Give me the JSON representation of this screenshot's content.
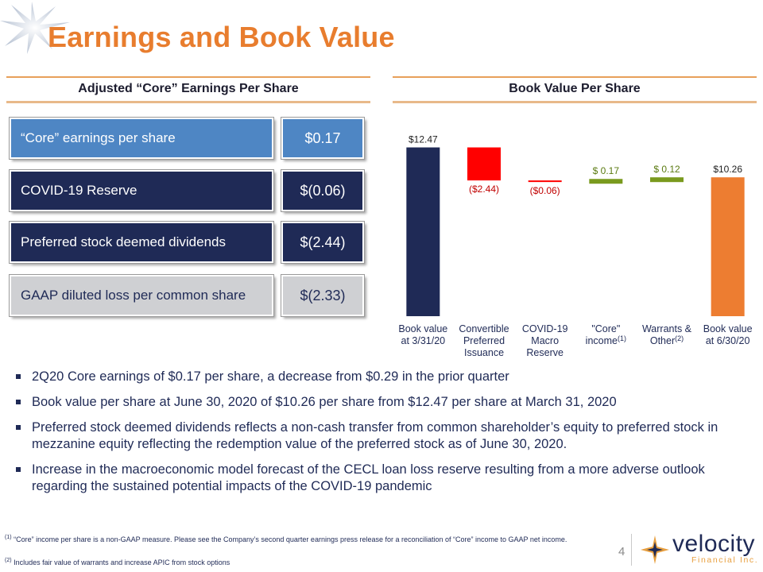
{
  "title": "Earnings and Book Value",
  "left_header": "Adjusted “Core” Earnings Per Share",
  "right_header": "Book Value Per Share",
  "eps_rows": [
    {
      "label": "“Core” earnings per share",
      "value": "$0.17"
    },
    {
      "label": "COVID-19 Reserve",
      "value": "$(0.06)"
    },
    {
      "label": "Preferred stock deemed dividends",
      "value": "$(2.44)"
    },
    {
      "label": "GAAP diluted loss per common share",
      "value": "$(2.33)"
    }
  ],
  "colors": {
    "title": "#e87d2e",
    "navy": "#1f2a56",
    "blue": "#4e86c4",
    "gray": "#cfd0d3",
    "red": "#ff0000",
    "green": "#7a9a1e",
    "orange": "#ed7d31",
    "red_label": "#c00000",
    "green_label": "#5a7a10"
  },
  "chart_data": {
    "type": "bar",
    "categories": [
      "Book value\nat 3/31/20",
      "Convertible\nPreferred\nIssuance",
      "COVID-19\nMacro\nReserve",
      "\"Core\"\nincome",
      "Warrants &\nOther",
      "Book value\nat 6/30/20"
    ],
    "category_superscripts": [
      "",
      "",
      "",
      "(1)",
      "(2)",
      ""
    ],
    "values": [
      12.47,
      -2.44,
      -0.06,
      0.17,
      0.12,
      10.26
    ],
    "value_labels": [
      "$12.47",
      "($2.44)",
      "($0.06)",
      "$ 0.17",
      "$ 0.12",
      "$10.26"
    ],
    "ylim": [
      0,
      13.5
    ]
  },
  "bullets": [
    "2Q20 Core earnings of $0.17 per share, a decrease from $0.29 in the prior quarter",
    "Book value per share at June 30, 2020 of $10.26 per share from $12.47 per share at March 31, 2020",
    "Preferred stock deemed dividends reflects a non-cash transfer from common shareholder’s equity to preferred stock in mezzanine equity reflecting the redemption value of the preferred stock as of June 30, 2020.",
    "Increase in the macroeconomic model forecast of the CECL loan loss reserve resulting from a more adverse outlook regarding the sustained potential impacts of the COVID-19 pandemic"
  ],
  "footnotes": {
    "f1_mark": "(1)",
    "f1_text": "“Core” income per share is a non-GAAP measure.  Please see the Company’s second quarter earnings press release for a reconciliation of “Core” income to GAAP net income.",
    "f2_mark": "(2)",
    "f2_text": "Includes fair value of warrants and increase APIC from stock options"
  },
  "page_number": "4",
  "logo": {
    "name": "velocity",
    "sub": "Financial Inc."
  }
}
